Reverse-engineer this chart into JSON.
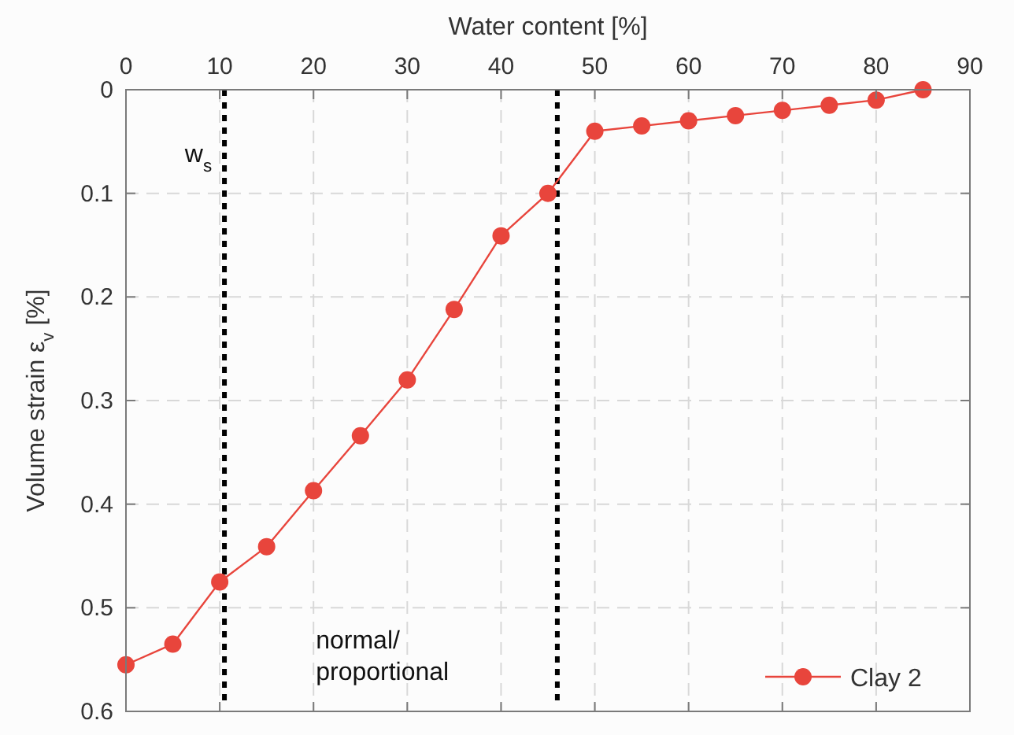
{
  "chart_data": {
    "type": "line",
    "xlabel": "Water content [%]",
    "ylabel": "Volume strain ε$_{v}$ [%]",
    "x": [
      0,
      5,
      10,
      15,
      20,
      25,
      30,
      35,
      40,
      45,
      50,
      55,
      60,
      65,
      70,
      75,
      80,
      85
    ],
    "series": [
      {
        "name": "Clay 2",
        "color": "#e8453c",
        "values": [
          0.555,
          0.535,
          0.475,
          0.441,
          0.387,
          0.334,
          0.28,
          0.212,
          0.141,
          0.1,
          0.04,
          0.035,
          0.03,
          0.025,
          0.02,
          0.015,
          0.01,
          0
        ]
      }
    ],
    "xlim": [
      0,
      90
    ],
    "xticks": [
      0,
      10,
      20,
      30,
      40,
      50,
      60,
      70,
      80,
      90
    ],
    "ylim": [
      0.6,
      0
    ],
    "yticks": [
      0,
      0.1,
      0.2,
      0.3,
      0.4,
      0.5,
      0.6
    ],
    "ref_lines": [
      {
        "axis": "x",
        "value": 10.5,
        "color": "#000000",
        "line_style": "dotted"
      },
      {
        "axis": "x",
        "value": 46,
        "color": "#000000",
        "line_style": "dotted"
      }
    ],
    "annotations": [
      {
        "text": "w$_{s}$",
        "x": 10.5,
        "y": 0.07
      },
      "normal/\nproportional"
    ],
    "grid": true,
    "legend": "bottom right",
    "marker": "circle",
    "line_style": "solid"
  }
}
